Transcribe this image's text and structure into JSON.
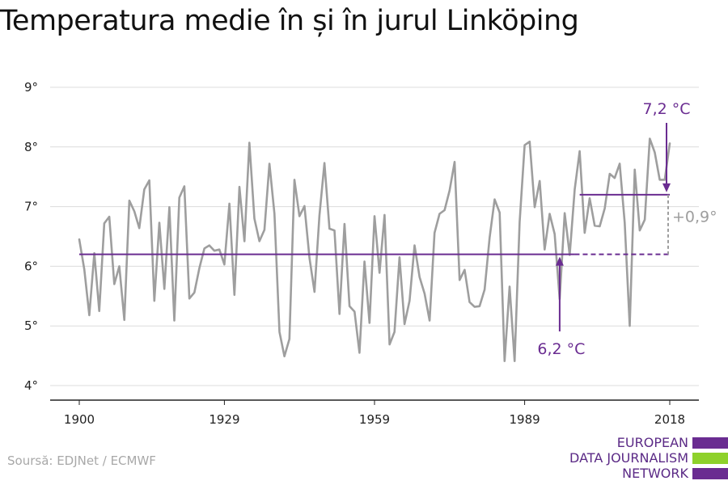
{
  "title": "Temperatura medie în și în jurul Linköping",
  "source": "Soursă: EDJNet / ECMWF",
  "logo": {
    "lines": [
      "EUROPEAN",
      "DATA JOURNALISM",
      "NETWORK"
    ],
    "colors": [
      "#6a2c91",
      "#8ed12b",
      "#6a2c91"
    ]
  },
  "chart_data": {
    "type": "line",
    "title": "",
    "xlabel": "",
    "ylabel": "",
    "x_ticks": [
      "1900",
      "1929",
      "1959",
      "1989",
      "2018"
    ],
    "y_ticks": [
      "4°",
      "5°",
      "6°",
      "7°",
      "8°",
      "9°"
    ],
    "xlim": [
      1900,
      2018
    ],
    "ylim": [
      4,
      9
    ],
    "grid": true,
    "series": [
      {
        "color": "#9e9e9e",
        "x": [
          1900,
          1901,
          1902,
          1903,
          1904,
          1905,
          1906,
          1907,
          1908,
          1909,
          1910,
          1911,
          1912,
          1913,
          1914,
          1915,
          1916,
          1917,
          1918,
          1919,
          1920,
          1921,
          1922,
          1923,
          1924,
          1925,
          1926,
          1927,
          1928,
          1929,
          1930,
          1931,
          1932,
          1933,
          1934,
          1935,
          1936,
          1937,
          1938,
          1939,
          1940,
          1941,
          1942,
          1943,
          1944,
          1945,
          1946,
          1947,
          1948,
          1949,
          1950,
          1951,
          1952,
          1953,
          1954,
          1955,
          1956,
          1957,
          1958,
          1959,
          1960,
          1961,
          1962,
          1963,
          1964,
          1965,
          1966,
          1967,
          1968,
          1969,
          1970,
          1971,
          1972,
          1973,
          1974,
          1975,
          1976,
          1977,
          1978,
          1979,
          1980,
          1981,
          1982,
          1983,
          1984,
          1985,
          1986,
          1987,
          1988,
          1989,
          1990,
          1991,
          1992,
          1993,
          1994,
          1995,
          1996,
          1997,
          1998,
          1999,
          2000,
          2001,
          2002,
          2003,
          2004,
          2005,
          2006,
          2007,
          2008,
          2009,
          2010,
          2011,
          2012,
          2013,
          2014,
          2015,
          2016,
          2017,
          2018
        ],
        "values": [
          6.45,
          5.95,
          5.18,
          6.22,
          5.25,
          6.72,
          6.83,
          5.7,
          6.0,
          5.1,
          7.1,
          6.92,
          6.64,
          7.29,
          7.44,
          5.42,
          6.73,
          5.62,
          6.99,
          5.09,
          7.15,
          7.34,
          5.46,
          5.56,
          5.97,
          6.3,
          6.35,
          6.26,
          6.28,
          6.03,
          7.05,
          5.52,
          7.33,
          6.42,
          8.07,
          6.8,
          6.42,
          6.61,
          7.72,
          6.88,
          4.9,
          4.49,
          4.78,
          7.45,
          6.84,
          7.01,
          6.14,
          5.57,
          6.85,
          7.73,
          6.63,
          6.6,
          5.2,
          6.71,
          5.33,
          5.24,
          4.55,
          6.08,
          5.05,
          6.84,
          5.89,
          6.86,
          4.69,
          4.9,
          6.15,
          5.03,
          5.42,
          6.35,
          5.82,
          5.54,
          5.09,
          6.56,
          6.88,
          6.94,
          7.27,
          7.75,
          5.77,
          5.94,
          5.4,
          5.32,
          5.33,
          5.61,
          6.48,
          7.12,
          6.9,
          4.41,
          5.66,
          4.41,
          6.74,
          8.03,
          8.09,
          6.99,
          7.43,
          6.28,
          6.88,
          6.54,
          5.45,
          6.89,
          6.19,
          7.29,
          7.93,
          6.56,
          7.14,
          6.68,
          6.67,
          6.97,
          7.55,
          7.48,
          7.72,
          6.73,
          5.0,
          7.62,
          6.6,
          6.78,
          8.14,
          7.91,
          7.45,
          7.45,
          8.06
        ]
      }
    ],
    "annotations": {
      "baseline": {
        "value": 6.2,
        "label": "6,2 °C",
        "x_start": 1900,
        "x_end": 1999,
        "dashed_to": 2018,
        "color": "#6a2c91"
      },
      "recent": {
        "value": 7.2,
        "label": "7,2 °C",
        "x_start": 2000,
        "x_end": 2018,
        "color": "#6a2c91"
      },
      "difference": {
        "label": "+0,9°",
        "color": "#9e9e9e"
      }
    }
  }
}
